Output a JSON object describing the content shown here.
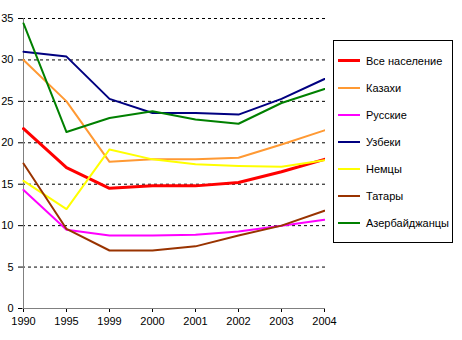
{
  "chart_data": {
    "type": "line",
    "categories": [
      "1990",
      "1995",
      "1999",
      "2000",
      "2001",
      "2002",
      "2003",
      "2004"
    ],
    "series": [
      {
        "name": "Все население",
        "color": "#ff0000",
        "values": [
          21.7,
          17.0,
          14.5,
          14.8,
          14.8,
          15.2,
          16.5,
          18.0
        ]
      },
      {
        "name": "Казахи",
        "color": "#ff9933",
        "values": [
          30.0,
          25.0,
          17.7,
          18.0,
          18.0,
          18.2,
          19.8,
          21.5
        ]
      },
      {
        "name": "Русские",
        "color": "#ff00ff",
        "values": [
          14.3,
          9.5,
          8.8,
          8.8,
          8.9,
          9.3,
          10.0,
          10.7
        ]
      },
      {
        "name": "Узбеки",
        "color": "#000080",
        "values": [
          31.0,
          30.4,
          25.3,
          23.6,
          23.6,
          23.4,
          25.3,
          27.7
        ]
      },
      {
        "name": "Немцы",
        "color": "#ffff00",
        "values": [
          15.4,
          12.0,
          19.2,
          18.0,
          17.4,
          17.2,
          17.1,
          17.9
        ]
      },
      {
        "name": "Татары",
        "color": "#993300",
        "values": [
          17.5,
          9.6,
          7.0,
          7.0,
          7.5,
          8.8,
          10.0,
          11.8
        ]
      },
      {
        "name": "Азербайджанцы",
        "color": "#008000",
        "values": [
          34.4,
          21.3,
          23.0,
          23.8,
          22.8,
          22.3,
          24.8,
          26.5
        ]
      }
    ],
    "ylim": [
      0,
      35
    ],
    "yticks": [
      0,
      5,
      10,
      15,
      20,
      25,
      30,
      35
    ],
    "grid": true,
    "legend": "right"
  }
}
